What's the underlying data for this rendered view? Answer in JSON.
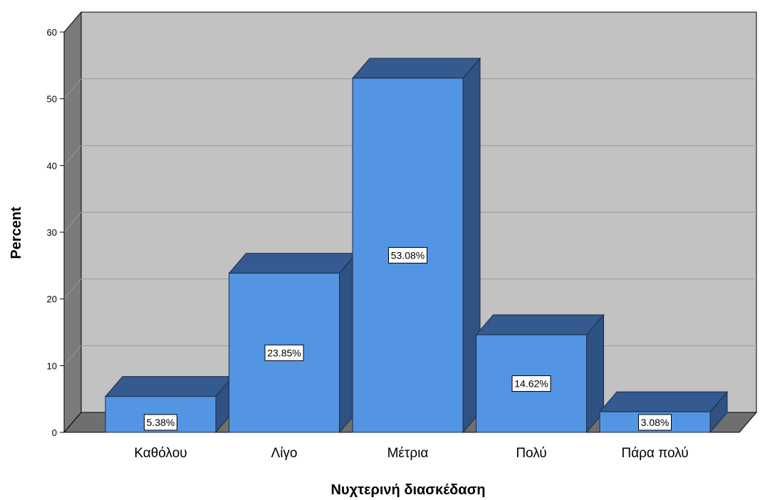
{
  "chart_data": {
    "type": "bar",
    "style": "3d",
    "categories": [
      "Καθόλου",
      "Λίγο",
      "Μέτρια",
      "Πολύ",
      "Πάρα πολύ"
    ],
    "values": [
      5.38,
      23.85,
      53.08,
      14.62,
      3.08
    ],
    "data_labels": [
      "5.38%",
      "23.85%",
      "53.08%",
      "14.62%",
      "3.08%"
    ],
    "xlabel": "Νυχτερινή διασκέδαση",
    "ylabel": "Percent",
    "ylim": [
      0,
      60
    ],
    "yticks": [
      0,
      10,
      20,
      30,
      40,
      50,
      60
    ],
    "grid": true,
    "legend": "none"
  },
  "colors": {
    "bar_front": "#5495e3",
    "bar_top": "#345a8f",
    "bar_side": "#2f5283",
    "bar_stroke": "#1a2c45",
    "back_wall": "#c2c2c2",
    "left_wall": "#7a7a7a",
    "floor": "#6f6f6f",
    "grid": "#9a9a9a"
  }
}
